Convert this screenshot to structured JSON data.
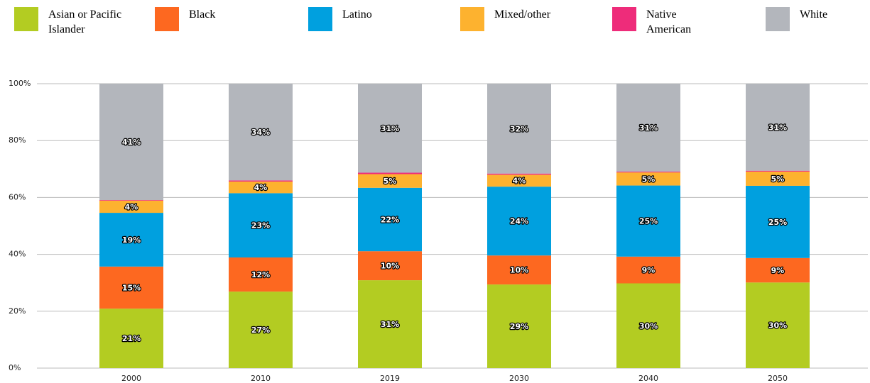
{
  "chart_data": {
    "type": "stacked_bar",
    "categories": [
      "2000",
      "2010",
      "2019",
      "2030",
      "2040",
      "2050"
    ],
    "series": [
      {
        "name": "Asian or Pacific Islander",
        "color": "#b3cc22",
        "values": [
          20.9,
          26.9,
          30.9,
          29.4,
          29.8,
          30.1
        ],
        "value_labels": [
          "21%",
          "27%",
          "31%",
          "29%",
          "30%",
          "30%"
        ]
      },
      {
        "name": "Black",
        "color": "#fd6820",
        "values": [
          14.8,
          12.0,
          10.2,
          10.2,
          9.4,
          8.6
        ],
        "value_labels": [
          "15%",
          "12%",
          "10%",
          "10%",
          "9%",
          "9%"
        ]
      },
      {
        "name": "Latino",
        "color": "#00a0df",
        "values": [
          18.9,
          22.6,
          22.3,
          24.2,
          25.0,
          25.4
        ],
        "value_labels": [
          "19%",
          "23%",
          "22%",
          "24%",
          "25%",
          "25%"
        ]
      },
      {
        "name": "Mixed/other",
        "color": "#fdb22f",
        "values": [
          4.3,
          4.1,
          4.8,
          4.2,
          4.6,
          5.0
        ],
        "value_labels": [
          "4%",
          "4%",
          "5%",
          "4%",
          "5%",
          "5%"
        ]
      },
      {
        "name": "Native American",
        "color": "#ee2c7a",
        "values": [
          0.2,
          0.4,
          0.5,
          0.4,
          0.3,
          0.3
        ],
        "value_labels": [
          null,
          null,
          null,
          null,
          null,
          null
        ]
      },
      {
        "name": "White",
        "color": "#b3b6bc",
        "values": [
          40.9,
          34.0,
          31.3,
          31.6,
          30.9,
          30.6
        ],
        "value_labels": [
          "41%",
          "34%",
          "31%",
          "32%",
          "31%",
          "31%"
        ]
      }
    ],
    "ylim": [
      0,
      100
    ],
    "yticks": [
      {
        "value": 0,
        "label": "0%"
      },
      {
        "value": 20,
        "label": "20%"
      },
      {
        "value": 40,
        "label": "40%"
      },
      {
        "value": 60,
        "label": "60%"
      },
      {
        "value": 80,
        "label": "80%"
      },
      {
        "value": 100,
        "label": "100%"
      }
    ],
    "grid": true
  }
}
